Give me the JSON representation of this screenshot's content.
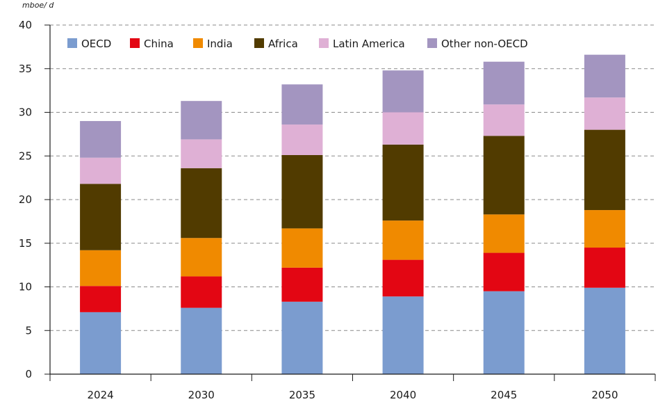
{
  "chart_data": {
    "type": "bar",
    "stacked": true,
    "unit_label": "mboe/ d",
    "title": "",
    "xlabel": "",
    "ylabel": "",
    "ylim": [
      0,
      40
    ],
    "yticks": [
      "0",
      "5",
      "10",
      "15",
      "20",
      "25",
      "30",
      "35",
      "40"
    ],
    "grid": true,
    "legend_position": "top-left",
    "categories": [
      "2024",
      "2030",
      "2035",
      "2040",
      "2045",
      "2050"
    ],
    "series": [
      {
        "name": "OECD",
        "color": "#7b9ccf",
        "values": [
          7.1,
          7.6,
          8.3,
          8.9,
          9.5,
          9.9
        ]
      },
      {
        "name": "China",
        "color": "#e30613",
        "values": [
          3.0,
          3.6,
          3.9,
          4.2,
          4.4,
          4.6
        ]
      },
      {
        "name": "India",
        "color": "#f08a00",
        "values": [
          4.1,
          4.4,
          4.5,
          4.5,
          4.4,
          4.3
        ]
      },
      {
        "name": "Africa",
        "color": "#513b00",
        "values": [
          7.6,
          8.0,
          8.4,
          8.7,
          9.0,
          9.2
        ]
      },
      {
        "name": "Latin America",
        "color": "#dfb0d5",
        "values": [
          3.0,
          3.3,
          3.5,
          3.7,
          3.6,
          3.7
        ]
      },
      {
        "name": "Other non-OECD",
        "color": "#a395c0",
        "values": [
          4.2,
          4.4,
          4.6,
          4.8,
          4.9,
          4.9
        ]
      }
    ]
  }
}
